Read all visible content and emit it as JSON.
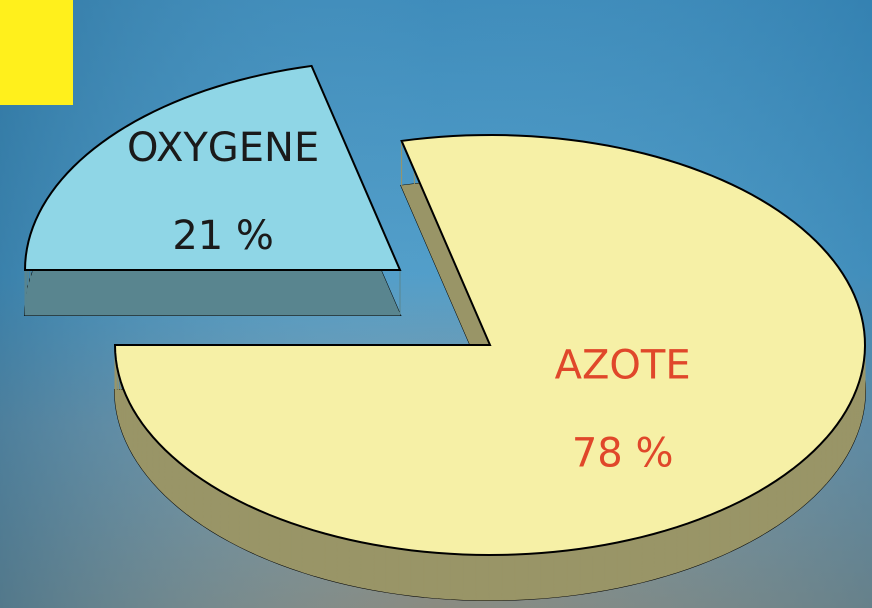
{
  "chart_data": {
    "type": "pie3d",
    "categories": [
      "OXYGENE",
      "AZOTE"
    ],
    "values": [
      21,
      78
    ],
    "value_labels": [
      "21 %",
      "78 %"
    ],
    "colors": [
      "#8fd6e6",
      "#f6f0a6"
    ],
    "label_colors": [
      "#1a1a1a",
      "#e0472a"
    ],
    "exploded": [
      true,
      false
    ]
  }
}
